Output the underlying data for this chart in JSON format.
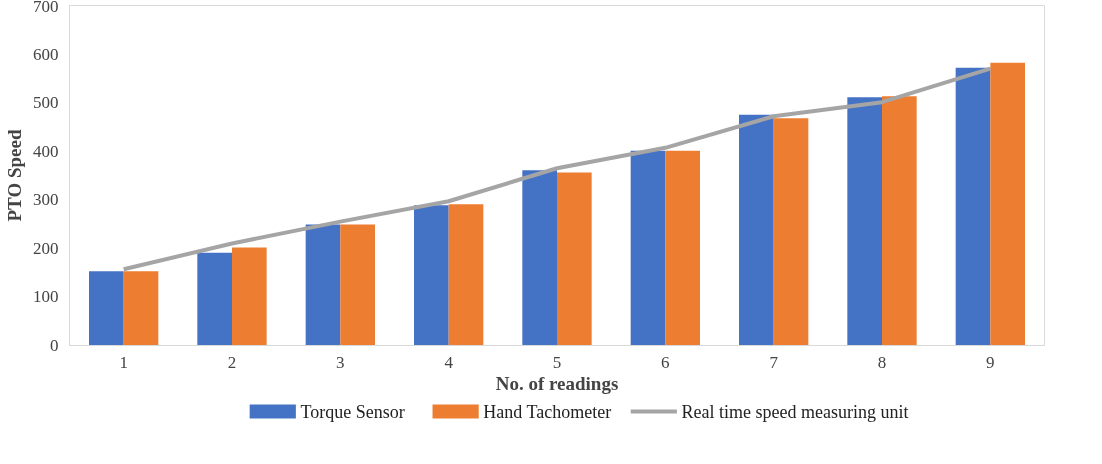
{
  "chart_data": {
    "type": "bar",
    "xlabel": "No. of readings",
    "ylabel": "PTO Speed",
    "categories": [
      "1",
      "2",
      "3",
      "4",
      "5",
      "6",
      "7",
      "8",
      "9"
    ],
    "series": [
      {
        "name": "Torque Sensor",
        "color": "#4472c4",
        "values": [
          153,
          191,
          249,
          289,
          361,
          401,
          475,
          511,
          572
        ]
      },
      {
        "name": "Hand Tachometer",
        "color": "#ed7d31",
        "values": [
          153,
          202,
          249,
          291,
          356,
          401,
          468,
          513,
          582
        ]
      },
      {
        "name": "Real time speed measuring unit",
        "type": "line",
        "color": "#a5a5a5",
        "values": [
          157,
          210,
          255,
          297,
          365,
          407,
          472,
          501,
          570
        ]
      }
    ],
    "ylim": [
      0,
      700
    ],
    "yticks": [
      0,
      100,
      200,
      300,
      400,
      500,
      600,
      700
    ],
    "grid": false,
    "legend": "bottom"
  }
}
